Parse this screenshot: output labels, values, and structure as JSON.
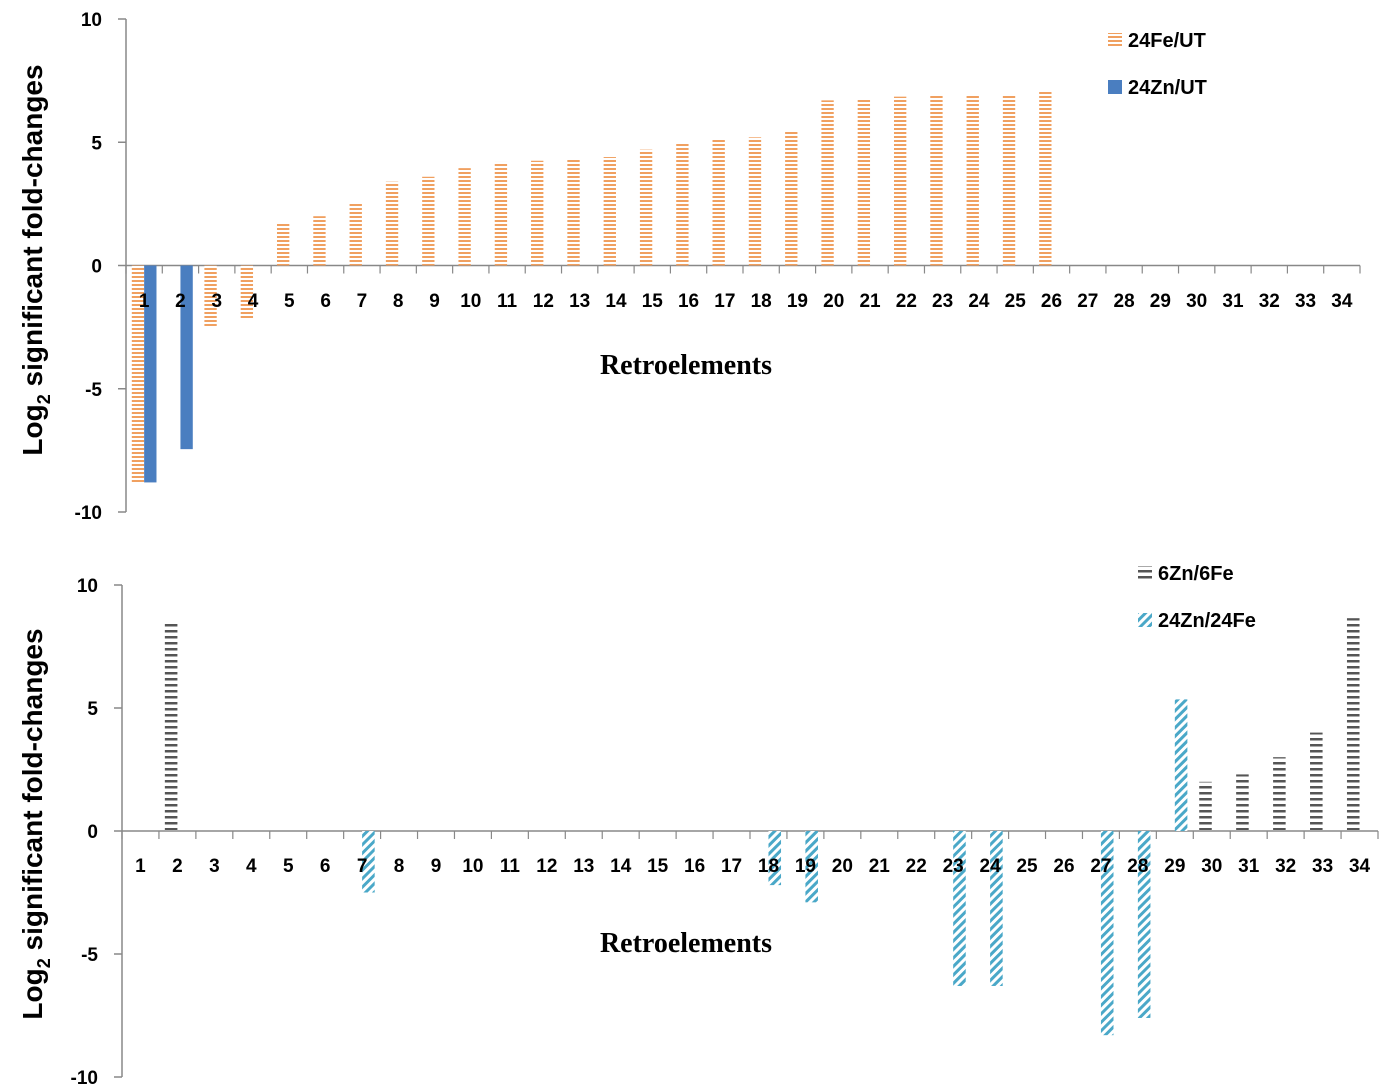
{
  "colors": {
    "fe_ut": "#f0a060",
    "zn_ut": "#4a7ec0",
    "zn6_fe6": "#555555",
    "zn24_fe24": "#4aa8c8",
    "axis": "#888888"
  },
  "chart_data": [
    {
      "type": "bar",
      "xlabel": "Retroelements",
      "ylabel_main": "Log",
      "ylabel_sub": "2",
      "ylabel_rest": " significant fold-changes",
      "ylim": [
        -10,
        10
      ],
      "yticks": [
        10,
        5,
        0,
        -5,
        -10
      ],
      "legend_position": "top-right",
      "categories": [
        "1",
        "2",
        "3",
        "4",
        "5",
        "6",
        "7",
        "8",
        "9",
        "10",
        "11",
        "12",
        "13",
        "14",
        "15",
        "16",
        "17",
        "18",
        "19",
        "20",
        "21",
        "22",
        "23",
        "24",
        "25",
        "26",
        "27",
        "28",
        "29",
        "30",
        "31",
        "32",
        "33",
        "34"
      ],
      "series": [
        {
          "name": "24Fe/UT",
          "pattern": "hstripe",
          "values": [
            -8.8,
            null,
            -2.5,
            -2.2,
            1.7,
            2.0,
            2.5,
            3.4,
            3.6,
            3.95,
            4.2,
            4.25,
            4.35,
            4.4,
            4.7,
            5.0,
            5.1,
            5.2,
            5.45,
            6.7,
            6.75,
            6.85,
            6.9,
            6.95,
            6.95,
            7.1,
            null,
            null,
            null,
            null,
            null,
            null,
            null,
            null
          ]
        },
        {
          "name": "24Zn/UT",
          "pattern": "solid",
          "values": [
            -8.8,
            -7.45,
            null,
            null,
            null,
            null,
            null,
            null,
            null,
            null,
            null,
            null,
            null,
            null,
            null,
            null,
            null,
            null,
            null,
            null,
            null,
            null,
            null,
            null,
            null,
            null,
            null,
            null,
            null,
            null,
            null,
            null,
            null,
            null
          ]
        }
      ]
    },
    {
      "type": "bar",
      "xlabel": "Retroelements",
      "ylabel_main": "Log",
      "ylabel_sub": "2",
      "ylabel_rest": " significant fold-changes",
      "ylim": [
        -10,
        10
      ],
      "yticks": [
        10,
        5,
        0,
        -5,
        -10
      ],
      "legend_position": "top-right",
      "categories": [
        "1",
        "2",
        "3",
        "4",
        "5",
        "6",
        "7",
        "8",
        "9",
        "10",
        "11",
        "12",
        "13",
        "14",
        "15",
        "16",
        "17",
        "18",
        "19",
        "20",
        "21",
        "22",
        "23",
        "24",
        "25",
        "26",
        "27",
        "28",
        "29",
        "30",
        "31",
        "32",
        "33",
        "34"
      ],
      "series": [
        {
          "name": "6Zn/6Fe",
          "pattern": "vstripe",
          "values": [
            null,
            8.45,
            null,
            null,
            null,
            null,
            null,
            null,
            null,
            null,
            null,
            null,
            null,
            null,
            null,
            null,
            null,
            null,
            null,
            null,
            null,
            null,
            null,
            null,
            null,
            null,
            null,
            null,
            null,
            2.0,
            2.3,
            3.0,
            4.0,
            8.65
          ]
        },
        {
          "name": "24Zn/24Fe",
          "pattern": "diag",
          "values": [
            null,
            null,
            null,
            null,
            null,
            null,
            -2.5,
            null,
            null,
            null,
            null,
            null,
            null,
            null,
            null,
            null,
            null,
            -2.2,
            -2.9,
            null,
            null,
            null,
            -6.3,
            -6.3,
            null,
            null,
            -8.3,
            -7.6,
            5.35,
            null,
            null,
            null,
            null,
            null
          ]
        }
      ]
    }
  ]
}
